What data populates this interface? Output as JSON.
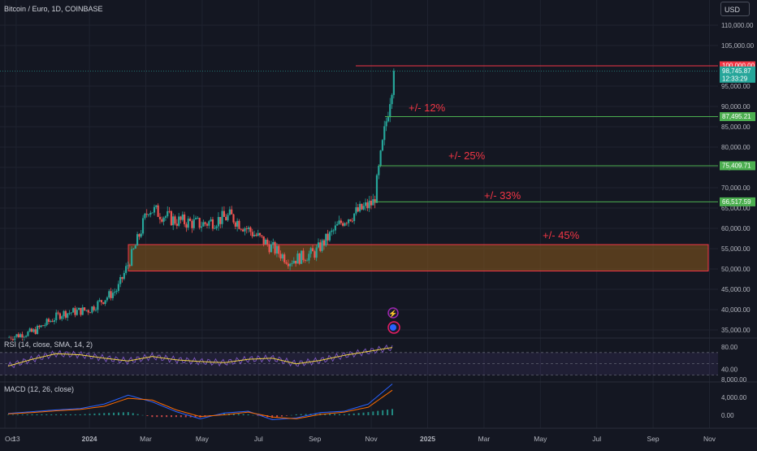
{
  "header": {
    "title": "Bitcoin / Euro, 1D, COINBASE",
    "currency_button": "USD"
  },
  "colors": {
    "background": "#141722",
    "grid": "#1f2330",
    "up": "#26a69a",
    "down": "#ef5350",
    "level_line": "#4caf50",
    "resistance_line": "#f23645",
    "zone_fill": "#8a5a1c",
    "annotation": "#f23645",
    "rsi_line": "#7e57c2",
    "rsi_ma": "#f5d547",
    "macd_line": "#2962ff",
    "signal_line": "#ff6d00"
  },
  "chart_data": [
    {
      "type": "candlestick",
      "title": "Bitcoin / Euro, 1D, COINBASE",
      "x_ticks": [
        "Oct",
        "13",
        "2024",
        "Mar",
        "May",
        "Jul",
        "Sep",
        "Nov",
        "2025",
        "Mar",
        "May",
        "Jul",
        "Sep",
        "Nov"
      ],
      "y_ticks": [
        "110,000.00",
        "105,000.00",
        "95,000.00",
        "90,000.00",
        "85,000.00",
        "80,000.00",
        "75,000.00",
        "70,000.00",
        "65,000.00",
        "60,000.00",
        "55,000.00",
        "50,000.00",
        "45,000.00",
        "40,000.00",
        "35,000.00"
      ],
      "ylim": [
        31000,
        113000
      ],
      "approx_close_path": [
        [
          "Oct 2023",
          33000
        ],
        [
          "Nov 2023",
          34500
        ],
        [
          "Dec 2023",
          39000
        ],
        [
          "Jan 2024",
          40000
        ],
        [
          "Feb 2024",
          45000
        ],
        [
          "early Mar 2024",
          55000
        ],
        [
          "mid Mar 2024",
          65000
        ],
        [
          "Apr 2024",
          62000
        ],
        [
          "May 2024",
          61000
        ],
        [
          "Jun 2024",
          63000
        ],
        [
          "early Aug 2024",
          52000
        ],
        [
          "Sep 2024",
          54000
        ],
        [
          "Oct 2024",
          62000
        ],
        [
          "early Nov 2024",
          66500
        ],
        [
          "mid Nov 2024",
          85000
        ],
        [
          "Nov 2024 (last)",
          98745.87
        ]
      ],
      "current_price": {
        "value": "98,745.87",
        "countdown": "12:33:29"
      },
      "levels": [
        {
          "value": "100,000.00",
          "kind": "resistance"
        },
        {
          "value": "87,495.21",
          "annotation": "+/- 12%"
        },
        {
          "value": "75,409.71",
          "annotation": "+/- 25%"
        },
        {
          "value": "66,517.59",
          "annotation": "+/- 33%"
        }
      ],
      "zone": {
        "low": 49500,
        "high": 56000,
        "annotation": "+/- 45%"
      }
    },
    {
      "type": "line",
      "title": "RSI (14, close, SMA, 14, 2)",
      "y_ticks": [
        "80.00",
        "40.00"
      ],
      "bands": [
        70,
        50,
        30
      ],
      "series": [
        {
          "values": [
            46,
            58,
            68,
            66,
            60,
            55,
            63,
            57,
            54,
            52,
            58,
            60,
            50,
            56,
            65,
            72,
            79
          ]
        }
      ]
    },
    {
      "type": "line",
      "title": "MACD (12, 26, close)",
      "y_ticks": [
        "8,000.00",
        "4,000.00",
        "0.00"
      ],
      "series": [
        {
          "values": [
            400,
            800,
            1200,
            1500,
            2500,
            4500,
            3000,
            800,
            -800,
            500,
            900,
            -1000,
            -600,
            600,
            900,
            2500,
            7000
          ]
        },
        {
          "values": [
            300,
            600,
            1000,
            1300,
            2000,
            3800,
            3400,
            1200,
            -300,
            100,
            700,
            -400,
            -800,
            200,
            700,
            1800,
            5600
          ]
        }
      ]
    }
  ]
}
